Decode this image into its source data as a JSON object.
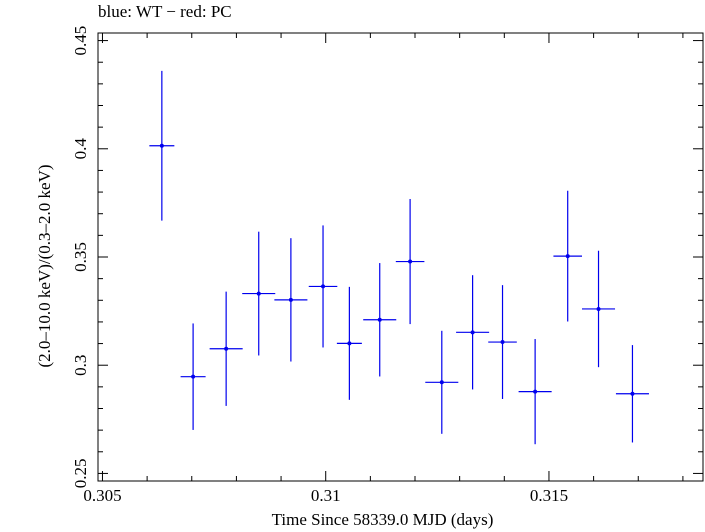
{
  "chart_data": {
    "type": "scatter",
    "title": "blue: WT − red: PC",
    "xlabel": "Time Since 58339.0 MJD (days)",
    "ylabel": "(2.0–10.0 keV)/(0.3–2.0 keV)",
    "xlim": [
      0.3049,
      0.31845
    ],
    "ylim": [
      0.2465,
      0.4535
    ],
    "x_ticks": [
      0.305,
      0.31,
      0.315
    ],
    "x_tick_labels": [
      "0.305",
      "0.31",
      "0.315"
    ],
    "y_ticks": [
      0.25,
      0.3,
      0.35,
      0.4,
      0.45
    ],
    "y_tick_labels": [
      "0.25",
      "0.3",
      "0.35",
      "0.4",
      "0.45"
    ],
    "x_minor_step": 0.001,
    "y_minor_step": 0.01,
    "grid": false,
    "legend": "none",
    "series": [
      {
        "color": "#0000ee",
        "points": [
          {
            "x": 0.30633,
            "xerr": 0.00028,
            "y": 0.4014,
            "yerr": 0.0346
          },
          {
            "x": 0.30703,
            "xerr": 0.00028,
            "y": 0.2947,
            "yerr": 0.0246
          },
          {
            "x": 0.30777,
            "xerr": 0.00037,
            "y": 0.3076,
            "yerr": 0.0264
          },
          {
            "x": 0.3085,
            "xerr": 0.00037,
            "y": 0.3331,
            "yerr": 0.0286
          },
          {
            "x": 0.30922,
            "xerr": 0.00037,
            "y": 0.3302,
            "yerr": 0.0285
          },
          {
            "x": 0.30994,
            "xerr": 0.00032,
            "y": 0.3364,
            "yerr": 0.0282
          },
          {
            "x": 0.31053,
            "xerr": 0.00028,
            "y": 0.3101,
            "yerr": 0.0261
          },
          {
            "x": 0.31121,
            "xerr": 0.00037,
            "y": 0.321,
            "yerr": 0.0262
          },
          {
            "x": 0.31189,
            "xerr": 0.00032,
            "y": 0.3479,
            "yerr": 0.0289
          },
          {
            "x": 0.3126,
            "xerr": 0.00037,
            "y": 0.2921,
            "yerr": 0.0238
          },
          {
            "x": 0.31329,
            "xerr": 0.00037,
            "y": 0.3152,
            "yerr": 0.0264
          },
          {
            "x": 0.31396,
            "xerr": 0.00032,
            "y": 0.3107,
            "yerr": 0.0263
          },
          {
            "x": 0.31469,
            "xerr": 0.00037,
            "y": 0.2878,
            "yerr": 0.0243
          },
          {
            "x": 0.31542,
            "xerr": 0.00032,
            "y": 0.3504,
            "yerr": 0.0302
          },
          {
            "x": 0.31611,
            "xerr": 0.00037,
            "y": 0.326,
            "yerr": 0.0269
          },
          {
            "x": 0.31687,
            "xerr": 0.00037,
            "y": 0.2868,
            "yerr": 0.0225
          }
        ]
      }
    ]
  }
}
